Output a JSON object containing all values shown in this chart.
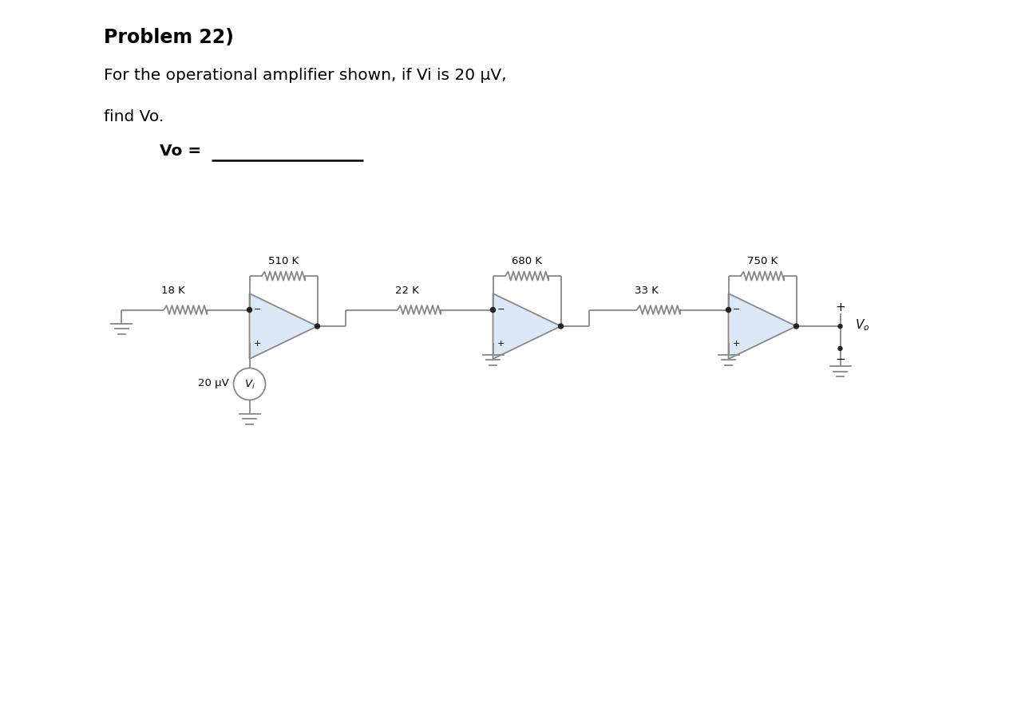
{
  "title_bold": "Problem 22)",
  "subtitle_line1": "For the operational amplifier shown, if Vi is 20 μV,",
  "subtitle_line2": "find Vo.",
  "vo_label": "Vo =",
  "resistor_labels": [
    "18 K",
    "510 K",
    "22 K",
    "680 K",
    "33 K",
    "750 K"
  ],
  "vi_label": "20 μV",
  "background": "#ffffff",
  "line_color": "#888888",
  "fill_color": "#dce8f5",
  "text_color": "#000000",
  "lw": 1.3
}
